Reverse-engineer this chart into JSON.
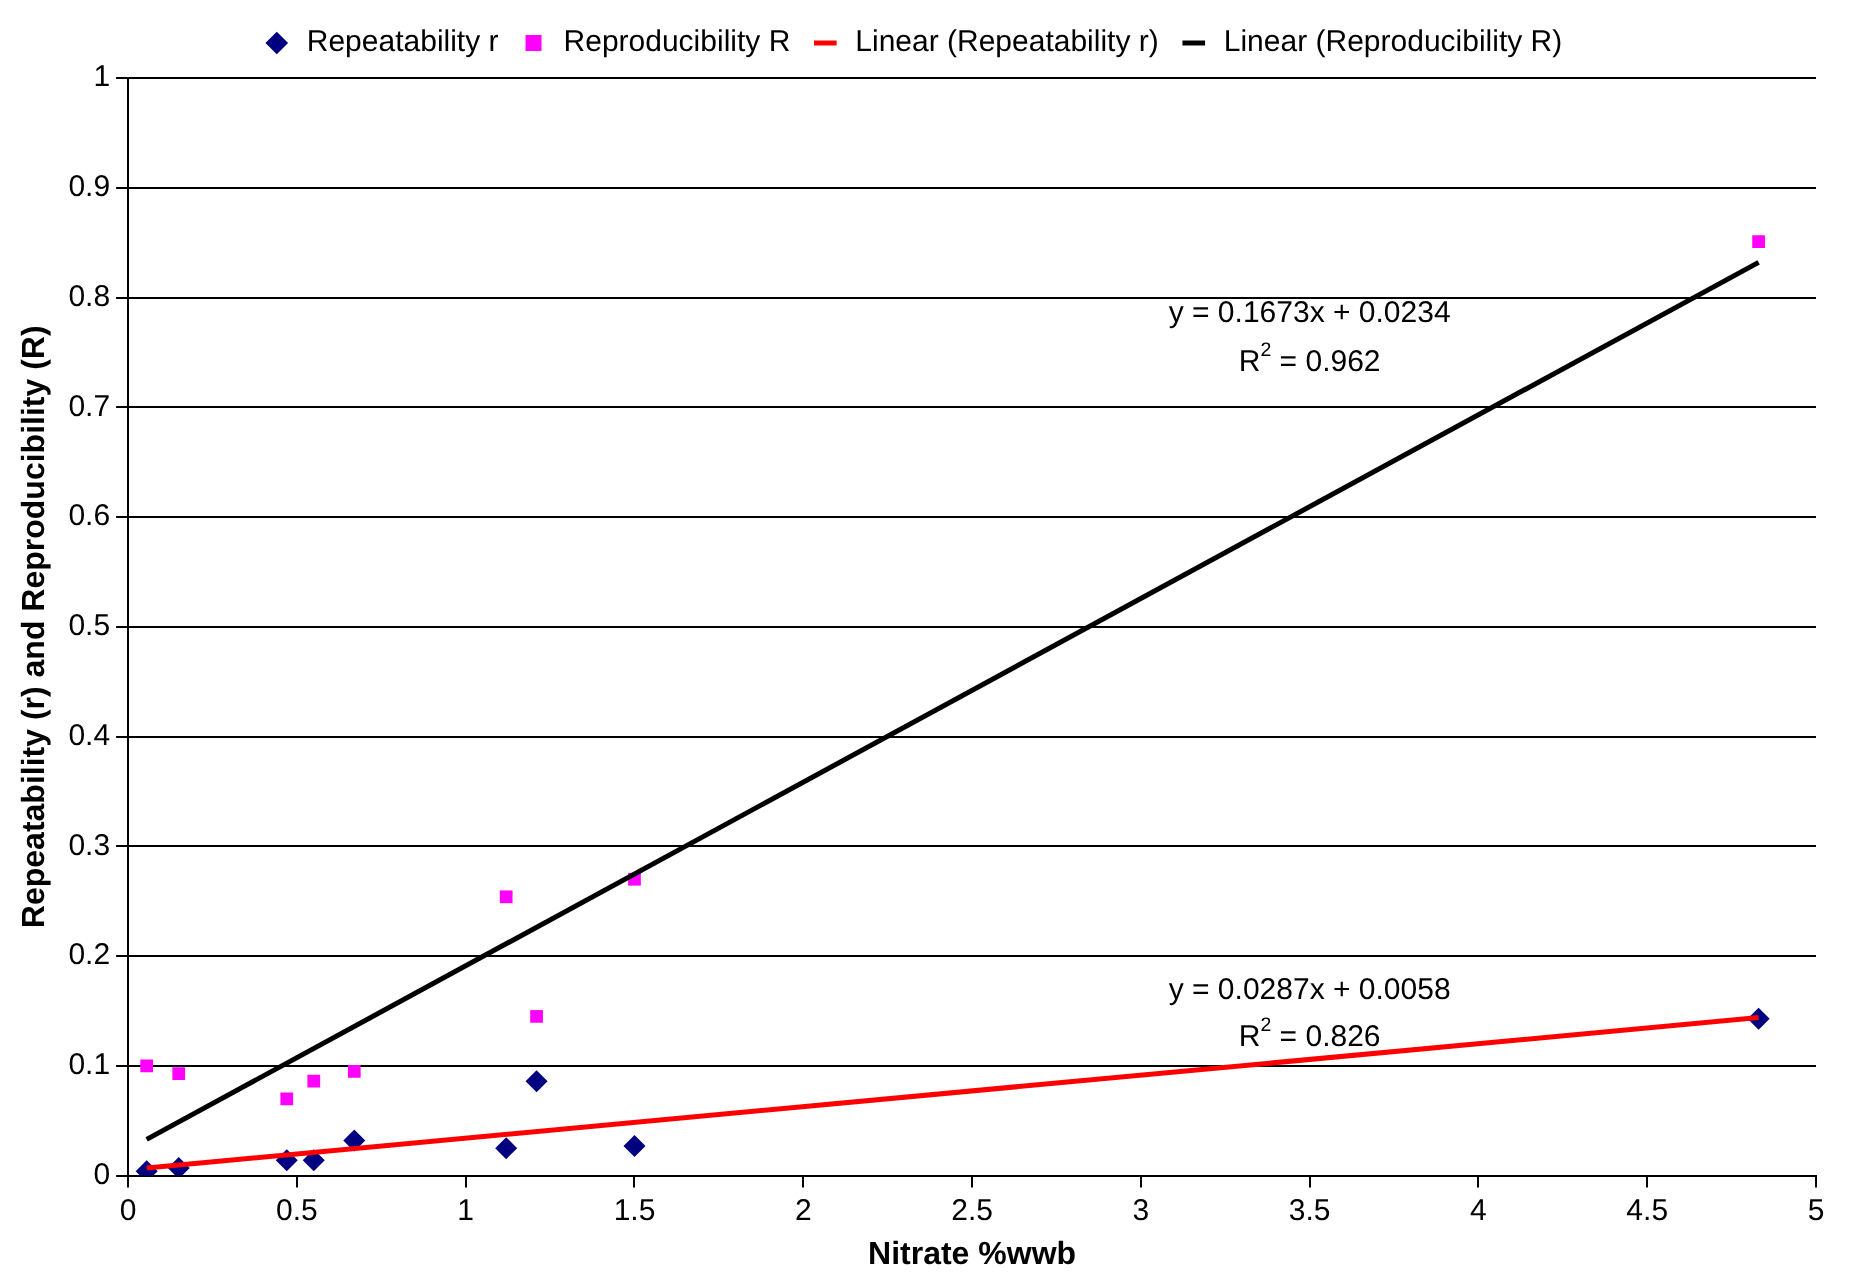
{
  "chart_data": {
    "type": "scatter",
    "xlabel": "Nitrate %wwb",
    "ylabel": "Repeatability (r) and Reproducibility (R)",
    "xlim": [
      0,
      5
    ],
    "xticks": [
      0,
      0.5,
      1,
      1.5,
      2,
      2.5,
      3,
      3.5,
      4,
      4.5,
      5
    ],
    "ylim": [
      0,
      1
    ],
    "yticks": [
      0,
      0.1,
      0.2,
      0.3,
      0.4,
      0.5,
      0.6,
      0.7,
      0.8,
      0.9,
      1
    ],
    "grid": "y",
    "legend": "top",
    "series": [
      {
        "name": "Repeatability r",
        "marker": "diamond",
        "color": "#000080",
        "x": [
          0.055,
          0.15,
          0.47,
          0.55,
          0.67,
          1.12,
          1.21,
          1.5,
          4.83
        ],
        "values": [
          0.004,
          0.007,
          0.014,
          0.014,
          0.032,
          0.025,
          0.086,
          0.027,
          0.143
        ]
      },
      {
        "name": "Reproducibility R",
        "marker": "square",
        "color": "#ff00ff",
        "x": [
          0.055,
          0.15,
          0.47,
          0.55,
          0.67,
          1.12,
          1.21,
          1.5,
          4.83
        ],
        "values": [
          0.1,
          0.093,
          0.07,
          0.086,
          0.095,
          0.254,
          0.145,
          0.27,
          0.851
        ]
      },
      {
        "name": "Linear (Repeatability r)",
        "type": "line",
        "marker": "none",
        "color": "#ff0000",
        "x": [
          0.055,
          4.83
        ],
        "values": [
          0.007,
          0.144
        ]
      },
      {
        "name": "Linear (Reproducibility R)",
        "type": "line",
        "marker": "none",
        "color": "#000000",
        "x": [
          0.055,
          4.83
        ],
        "values": [
          0.033,
          0.832
        ]
      }
    ],
    "annotations": [
      "y = 0.1673x + 0.0234",
      "R$^{2}$ = 0.962",
      "y = 0.0287x + 0.0058",
      "R$^{2}$ = 0.826"
    ]
  }
}
